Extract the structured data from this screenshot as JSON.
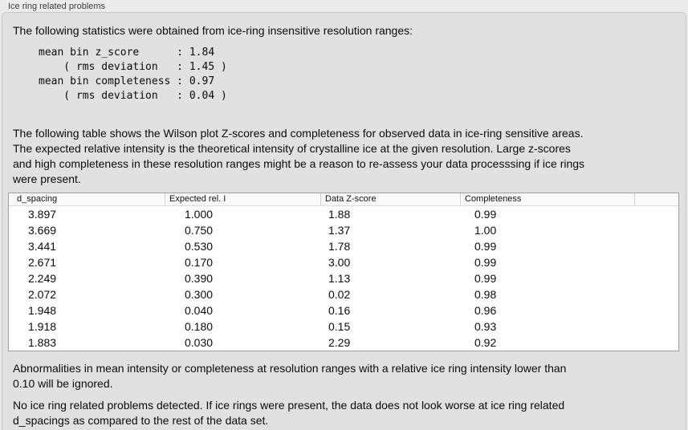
{
  "panel": {
    "label": "Ice ring related problems"
  },
  "intro": {
    "text": "The following statistics were obtained from ice-ring insensitive resolution ranges:"
  },
  "stats_block": {
    "lines": [
      "mean bin z_score      : 1.84",
      "    ( rms deviation   : 1.45 )",
      "mean bin completeness : 0.97",
      "    ( rms deviation   : 0.04 )"
    ]
  },
  "description": {
    "lines": [
      "The following table shows the Wilson plot Z-scores and completeness for observed data in ice-ring sensitive areas.",
      "The expected relative intensity is the theoretical intensity of crystalline ice at the given resolution. Large z-scores",
      "and high completeness in these resolution ranges might be a reason to re-assess your data processsing if ice rings",
      "were present."
    ]
  },
  "table": {
    "columns": [
      "d_spacing",
      "Expected rel. I",
      "Data Z-score",
      "Completeness"
    ],
    "rows": [
      [
        "3.897",
        "1.000",
        "1.88",
        "0.99"
      ],
      [
        "3.669",
        "0.750",
        "1.37",
        "1.00"
      ],
      [
        "3.441",
        "0.530",
        "1.78",
        "0.99"
      ],
      [
        "2.671",
        "0.170",
        "3.00",
        "0.99"
      ],
      [
        "2.249",
        "0.390",
        "1.13",
        "0.99"
      ],
      [
        "2.072",
        "0.300",
        "0.02",
        "0.98"
      ],
      [
        "1.948",
        "0.040",
        "0.16",
        "0.96"
      ],
      [
        "1.918",
        "0.180",
        "0.15",
        "0.93"
      ],
      [
        "1.883",
        "0.030",
        "2.29",
        "0.92"
      ]
    ]
  },
  "notes": {
    "ignore_lines": [
      "Abnormalities in mean intensity or completeness at resolution ranges with a relative ice ring intensity lower than",
      "0.10 will be ignored."
    ],
    "conclusion_lines": [
      "No ice ring related problems detected. If ice rings were present, the data does not look worse at ice ring related",
      "d_spacings as compared to the rest of the data set."
    ]
  },
  "colors": {
    "page_bg": "#ececec",
    "panel_bg": "#e1e1e1",
    "panel_border": "#c8c8c8",
    "table_bg": "#ffffff",
    "table_border": "#9f9f9f",
    "header_separator": "#cfcfcf",
    "text": "#0b0b0b",
    "label_text": "#3c3c3c"
  }
}
